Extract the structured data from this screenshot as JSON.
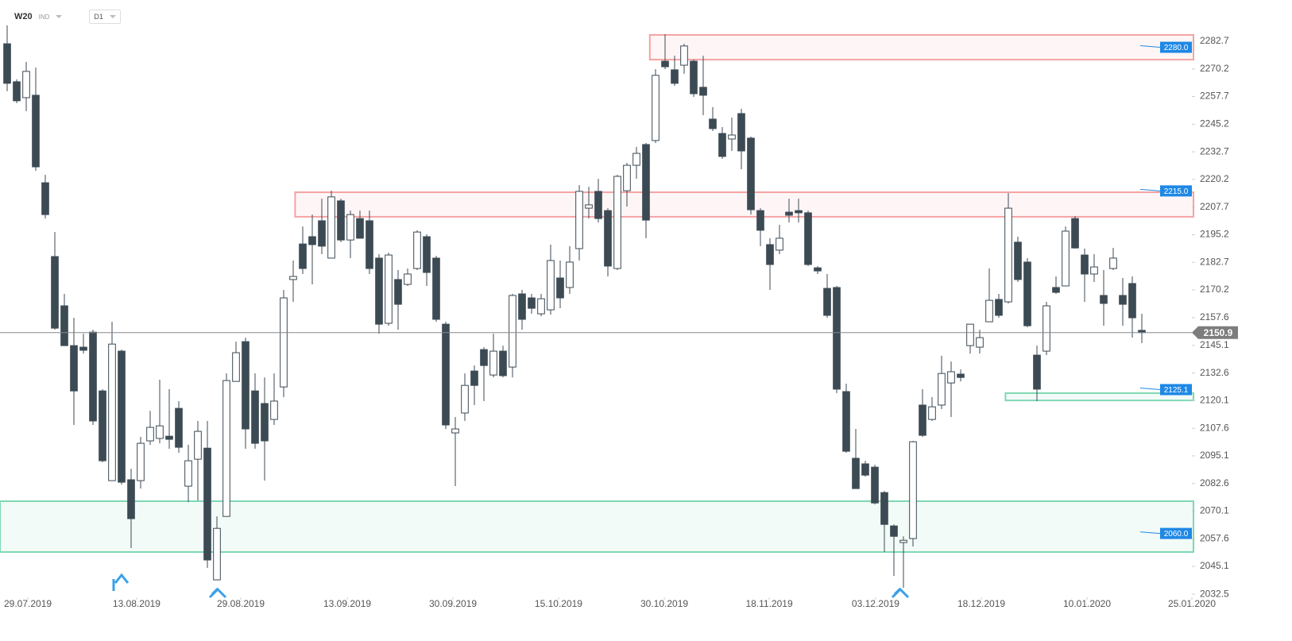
{
  "header": {
    "symbol": "W20",
    "market": "IND",
    "interval": "D1"
  },
  "chart_data": {
    "type": "candlestick",
    "open": [
      2281.6,
      2264.4,
      2257.2,
      2258.3,
      2218.7,
      2185.3,
      2163.0,
      2145.0,
      2144.3,
      2151.1,
      2124.5,
      2083.9,
      2142.5,
      2084.3,
      2083.9,
      2101.9,
      2103.0,
      2104.0,
      2116.6,
      2081.4,
      2093.6,
      2098.6,
      2039.0,
      2067.7,
      2128.8,
      2146.8,
      2124.5,
      2118.8,
      2111.6,
      2126.3,
      2174.9,
      2191.0,
      2194.3,
      2201.5,
      2184.6,
      2210.5,
      2192.8,
      2202.5,
      2201.5,
      2184.6,
      2155.1,
      2174.9,
      2172.7,
      2179.9,
      2194.3,
      2184.6,
      2154.7,
      2105.5,
      2114.5,
      2133.5,
      2143.2,
      2131.7,
      2142.5,
      2135.3,
      2168.4,
      2166.6,
      2159.4,
      2161.2,
      2175.6,
      2171.3,
      2188.9,
      2207.2,
      2214.8,
      2206.1,
      2179.9,
      2215.1,
      2226.6,
      2236.0,
      2237.8,
      2273.7,
      2269.8,
      2271.9,
      2273.7,
      2261.9,
      2247.5,
      2241.0,
      2238.5,
      2250.0,
      2238.9,
      2206.1,
      2190.7,
      2188.2,
      2205.4,
      2206.1,
      2205.1,
      2180.2,
      2170.9,
      2171.3,
      2124.2,
      2094.0,
      2091.5,
      2090.0,
      2078.5,
      2063.4,
      2055.9,
      2057.7,
      2118.1,
      2111.6,
      2118.1,
      2128.1,
      2132.1,
      2145.0,
      2144.3,
      2155.8,
      2165.9,
      2164.8,
      2191.8,
      2182.8,
      2140.7,
      2142.5,
      2171.3,
      2172.0,
      2202.5,
      2186.0,
      2177.4,
      2167.7,
      2179.9,
      2167.7,
      2173.1,
      2151.9
    ],
    "high": [
      2289.9,
      2265.5,
      2273.4,
      2270.8,
      2222.3,
      2196.4,
      2168.4,
      2157.6,
      2150.4,
      2152.2,
      2125.3,
      2155.8,
      2143.2,
      2089.3,
      2103.7,
      2115.5,
      2129.6,
      2125.3,
      2119.9,
      2100.1,
      2110.9,
      2110.9,
      2067.7,
      2132.4,
      2146.8,
      2148.6,
      2132.4,
      2130.6,
      2132.4,
      2170.2,
      2183.5,
      2198.9,
      2204.3,
      2211.5,
      2215.1,
      2211.5,
      2206.1,
      2206.1,
      2206.1,
      2186.4,
      2187.1,
      2179.2,
      2179.9,
      2197.2,
      2195.4,
      2185.6,
      2155.8,
      2112.7,
      2132.4,
      2136.0,
      2144.3,
      2150.4,
      2145.0,
      2168.4,
      2170.2,
      2168.4,
      2168.4,
      2190.7,
      2183.5,
      2190.0,
      2217.6,
      2216.9,
      2220.5,
      2207.2,
      2222.3,
      2227.7,
      2234.9,
      2236.7,
      2270.1,
      2285.9,
      2276.2,
      2281.6,
      2274.5,
      2276.2,
      2252.9,
      2243.9,
      2248.2,
      2252.2,
      2239.6,
      2207.2,
      2193.6,
      2199.7,
      2211.5,
      2211.5,
      2206.1,
      2181.0,
      2177.4,
      2172.0,
      2127.8,
      2107.3,
      2092.9,
      2091.1,
      2079.2,
      2064.1,
      2058.7,
      2101.9,
      2125.3,
      2121.7,
      2140.4,
      2137.8,
      2134.2,
      2154.7,
      2152.2,
      2179.9,
      2168.4,
      2214.0,
      2194.3,
      2184.6,
      2145.0,
      2164.8,
      2176.3,
      2198.9,
      2203.6,
      2188.9,
      2186.4,
      2179.2,
      2189.2,
      2175.6,
      2176.3,
      2159.4
    ],
    "low": [
      2260.1,
      2254.7,
      2251.1,
      2224.1,
      2202.5,
      2152.2,
      2145.0,
      2109.1,
      2141.4,
      2109.1,
      2092.2,
      2083.9,
      2082.1,
      2053.4,
      2080.3,
      2100.1,
      2100.8,
      2098.3,
      2096.5,
      2074.2,
      2074.9,
      2044.4,
      2039.0,
      2067.7,
      2128.8,
      2098.3,
      2098.3,
      2083.9,
      2109.1,
      2121.7,
      2164.8,
      2177.4,
      2172.7,
      2186.4,
      2184.6,
      2191.8,
      2184.6,
      2193.6,
      2177.4,
      2150.4,
      2154.0,
      2152.2,
      2172.0,
      2179.2,
      2172.0,
      2155.8,
      2107.3,
      2081.4,
      2110.9,
      2118.1,
      2119.9,
      2130.6,
      2130.6,
      2130.6,
      2152.2,
      2159.4,
      2158.3,
      2159.0,
      2161.9,
      2168.4,
      2183.5,
      2202.5,
      2200.7,
      2176.3,
      2179.2,
      2207.9,
      2220.5,
      2193.6,
      2236.7,
      2270.1,
      2262.6,
      2268.0,
      2257.5,
      2249.3,
      2242.1,
      2229.5,
      2233.1,
      2224.8,
      2204.3,
      2190.0,
      2170.2,
      2186.4,
      2200.7,
      2200.7,
      2181.0,
      2177.4,
      2157.6,
      2123.5,
      2096.5,
      2080.3,
      2085.7,
      2073.1,
      2051.6,
      2040.8,
      2035.4,
      2054.1,
      2103.7,
      2110.9,
      2116.3,
      2112.7,
      2128.8,
      2141.4,
      2141.4,
      2155.8,
      2157.6,
      2164.1,
      2173.8,
      2153.3,
      2119.9,
      2140.7,
      2168.4,
      2172.0,
      2188.9,
      2164.8,
      2173.8,
      2154.0,
      2179.2,
      2154.0,
      2148.6,
      2146.1
    ],
    "close": [
      2263.7,
      2255.8,
      2269.1,
      2225.9,
      2204.3,
      2152.9,
      2145.0,
      2124.5,
      2142.9,
      2110.9,
      2092.9,
      2145.7,
      2083.2,
      2066.7,
      2100.8,
      2108.0,
      2108.7,
      2102.6,
      2099.0,
      2092.9,
      2106.2,
      2048.0,
      2062.3,
      2129.2,
      2141.8,
      2107.3,
      2100.8,
      2101.9,
      2119.9,
      2166.6,
      2176.3,
      2179.9,
      2190.7,
      2190.0,
      2212.3,
      2192.8,
      2204.3,
      2193.6,
      2179.9,
      2154.7,
      2186.0,
      2163.7,
      2177.4,
      2196.4,
      2178.1,
      2156.9,
      2109.1,
      2107.3,
      2127.0,
      2127.0,
      2136.0,
      2142.5,
      2131.4,
      2167.7,
      2156.9,
      2161.9,
      2166.2,
      2183.5,
      2166.6,
      2182.8,
      2214.8,
      2208.7,
      2202.5,
      2181.0,
      2221.6,
      2226.6,
      2232.0,
      2201.8,
      2267.3,
      2271.2,
      2263.7,
      2280.6,
      2259.0,
      2258.3,
      2243.2,
      2230.6,
      2240.3,
      2233.1,
      2206.5,
      2197.2,
      2181.7,
      2193.6,
      2204.0,
      2205.1,
      2181.7,
      2178.8,
      2158.7,
      2125.3,
      2097.2,
      2080.3,
      2086.4,
      2073.8,
      2064.1,
      2058.7,
      2056.9,
      2101.5,
      2104.4,
      2117.3,
      2132.4,
      2133.2,
      2130.6,
      2154.7,
      2148.6,
      2165.5,
      2158.7,
      2207.2,
      2174.9,
      2154.0,
      2125.3,
      2163.0,
      2169.1,
      2196.8,
      2189.2,
      2177.4,
      2180.6,
      2164.1,
      2184.6,
      2163.7,
      2157.6,
      2150.9
    ],
    "up_color": "#ffffff",
    "down_color": "#3c4a54",
    "xlim": [
      -0.75,
      124.25
    ],
    "xticks": [
      {
        "value": 2.17,
        "label": "29.07.2019"
      },
      {
        "value": 13.58,
        "label": "13.08.2019"
      },
      {
        "value": 24.5,
        "label": "29.08.2019"
      },
      {
        "value": 35.67,
        "label": "13.09.2019"
      },
      {
        "value": 46.75,
        "label": "30.09.2019"
      },
      {
        "value": 57.83,
        "label": "15.10.2019"
      },
      {
        "value": 68.92,
        "label": "30.10.2019"
      },
      {
        "value": 79.92,
        "label": "18.11.2019"
      },
      {
        "value": 91.08,
        "label": "03.12.2019"
      },
      {
        "value": 102.17,
        "label": "18.12.2019"
      },
      {
        "value": 113.25,
        "label": "10.01.2020"
      },
      {
        "value": 124.25,
        "label": "25.01.2020"
      }
    ],
    "ylim": [
      2031.1,
      2301.4
    ],
    "yticks": [
      2282.7,
      2270.2,
      2257.7,
      2245.2,
      2232.7,
      2220.2,
      2207.7,
      2195.2,
      2182.7,
      2170.2,
      2157.6,
      2145.1,
      2132.6,
      2120.1,
      2107.6,
      2095.1,
      2082.6,
      2070.1,
      2057.6,
      2045.1,
      2032.5
    ],
    "last": 2150.9,
    "zones": [
      {
        "top": 2285.6,
        "bottom": 2274.4,
        "from": 67.4,
        "color": "#f5a3a3",
        "level": {
          "value": 2280,
          "label": "2280.0"
        }
      },
      {
        "top": 2214.4,
        "bottom": 2203.3,
        "from": 30.2,
        "color": "#f5a3a3",
        "level": {
          "value": 2215,
          "label": "2215.0"
        }
      },
      {
        "top": 2123.5,
        "bottom": 2120.2,
        "from": 104.7,
        "color": "#7ed8b4",
        "level": 2125.1
      },
      {
        "top": 2074.6,
        "bottom": 2051.6,
        "from": -0.75,
        "color": "#7ed8b4",
        "level": {
          "value": 2060,
          "label": "2060.0"
        }
      }
    ]
  }
}
